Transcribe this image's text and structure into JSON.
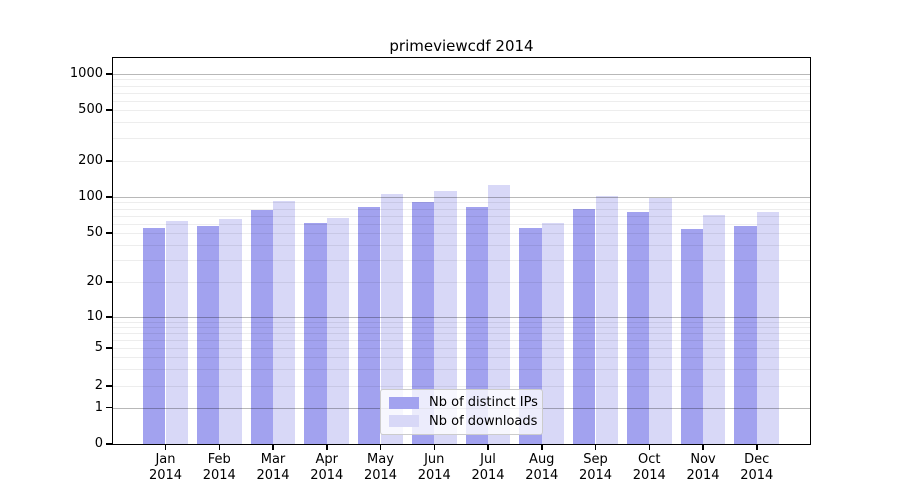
{
  "title": "primeviewcdf 2014",
  "chart_data": {
    "type": "bar",
    "title": "primeviewcdf 2014",
    "categories": [
      "Jan 2014",
      "Feb 2014",
      "Mar 2014",
      "Apr 2014",
      "May 2014",
      "Jun 2014",
      "Jul 2014",
      "Aug 2014",
      "Sep 2014",
      "Oct 2014",
      "Nov 2014",
      "Dec 2014"
    ],
    "series": [
      {
        "name": "Nb of distinct IPs",
        "color": "#a2a2ef",
        "values": [
          55,
          57,
          78,
          61,
          82,
          91,
          82,
          55,
          79,
          75,
          54,
          57
        ]
      },
      {
        "name": "Nb of downloads",
        "color": "#d8d8f7",
        "values": [
          63,
          65,
          93,
          67,
          107,
          113,
          125,
          61,
          102,
          98,
          71,
          75
        ]
      }
    ],
    "yscale": "symlog",
    "yticks": [
      0,
      1,
      2,
      5,
      10,
      20,
      50,
      100,
      200,
      500,
      1000
    ],
    "ylim": [
      0,
      1400
    ],
    "xlabel": "",
    "ylabel": "",
    "grid": "horizontal log gridlines, drawn above bars",
    "legend_position": "lower center inside plot"
  },
  "legend": {
    "items": [
      {
        "label": "Nb of distinct IPs",
        "color": "#a2a2ef"
      },
      {
        "label": "Nb of downloads",
        "color": "#d8d8f7"
      }
    ]
  }
}
